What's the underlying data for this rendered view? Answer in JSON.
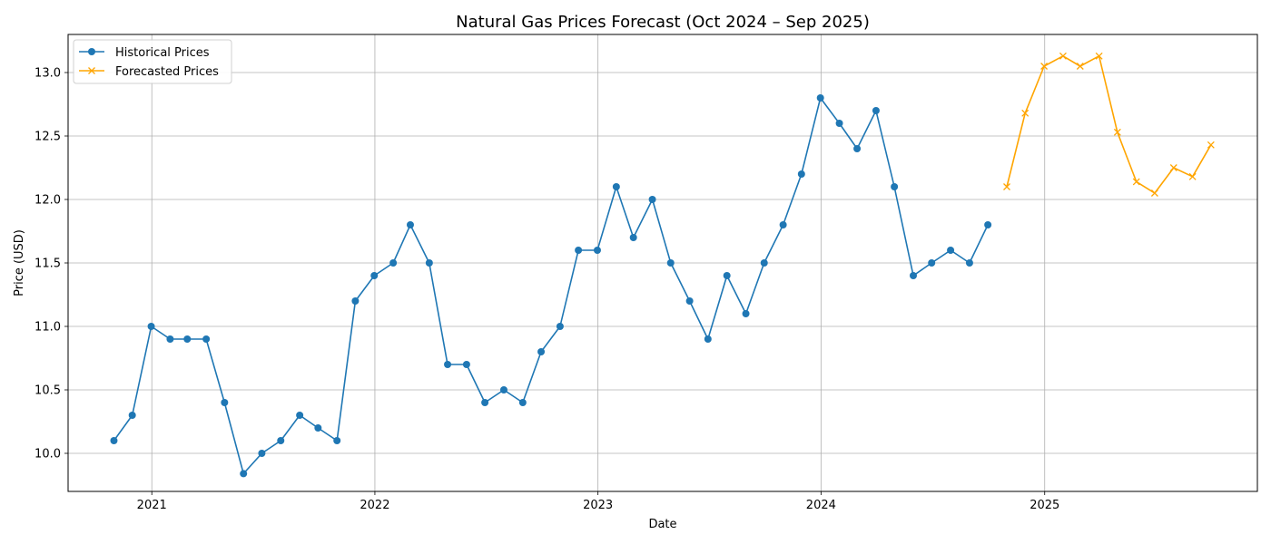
{
  "chart_data": {
    "type": "line",
    "title": "Natural Gas Prices Forecast (Oct 2024 – Sep 2025)",
    "xlabel": "Date",
    "ylabel": "Price (USD)",
    "xlim": [
      "2020-08-17",
      "2025-12-15"
    ],
    "ylim": [
      9.7,
      13.3
    ],
    "x_ticks": [
      {
        "date": "2021-01-01",
        "label": "2021"
      },
      {
        "date": "2022-01-01",
        "label": "2022"
      },
      {
        "date": "2023-01-01",
        "label": "2023"
      },
      {
        "date": "2024-01-01",
        "label": "2024"
      },
      {
        "date": "2025-01-01",
        "label": "2025"
      }
    ],
    "y_ticks": [
      10.0,
      10.5,
      11.0,
      11.5,
      12.0,
      12.5,
      13.0
    ],
    "grid": true,
    "legend_position": "top-left",
    "series": [
      {
        "name": "Historical Prices",
        "color": "#1f77b4",
        "marker": "circle",
        "points": [
          [
            "2020-10-31",
            10.1
          ],
          [
            "2020-11-30",
            10.3
          ],
          [
            "2020-12-31",
            11.0
          ],
          [
            "2021-01-31",
            10.9
          ],
          [
            "2021-02-28",
            10.9
          ],
          [
            "2021-03-31",
            10.9
          ],
          [
            "2021-04-30",
            10.4
          ],
          [
            "2021-05-31",
            9.84
          ],
          [
            "2021-06-30",
            10.0
          ],
          [
            "2021-07-31",
            10.1
          ],
          [
            "2021-08-31",
            10.3
          ],
          [
            "2021-09-30",
            10.2
          ],
          [
            "2021-10-31",
            10.1
          ],
          [
            "2021-11-30",
            11.2
          ],
          [
            "2021-12-31",
            11.4
          ],
          [
            "2022-01-31",
            11.5
          ],
          [
            "2022-02-28",
            11.8
          ],
          [
            "2022-03-31",
            11.5
          ],
          [
            "2022-04-30",
            10.7
          ],
          [
            "2022-05-31",
            10.7
          ],
          [
            "2022-06-30",
            10.4
          ],
          [
            "2022-07-31",
            10.5
          ],
          [
            "2022-08-31",
            10.4
          ],
          [
            "2022-09-30",
            10.8
          ],
          [
            "2022-10-31",
            11.0
          ],
          [
            "2022-11-30",
            11.6
          ],
          [
            "2022-12-31",
            11.6
          ],
          [
            "2023-01-31",
            12.1
          ],
          [
            "2023-02-28",
            11.7
          ],
          [
            "2023-03-31",
            12.0
          ],
          [
            "2023-04-30",
            11.5
          ],
          [
            "2023-05-31",
            11.2
          ],
          [
            "2023-06-30",
            10.9
          ],
          [
            "2023-07-31",
            11.4
          ],
          [
            "2023-08-31",
            11.1
          ],
          [
            "2023-09-30",
            11.5
          ],
          [
            "2023-10-31",
            11.8
          ],
          [
            "2023-11-30",
            12.2
          ],
          [
            "2023-12-31",
            12.8
          ],
          [
            "2024-01-31",
            12.6
          ],
          [
            "2024-02-29",
            12.4
          ],
          [
            "2024-03-31",
            12.7
          ],
          [
            "2024-04-30",
            12.1
          ],
          [
            "2024-05-31",
            11.4
          ],
          [
            "2024-06-30",
            11.5
          ],
          [
            "2024-07-31",
            11.6
          ],
          [
            "2024-08-31",
            11.5
          ],
          [
            "2024-09-30",
            11.8
          ]
        ]
      },
      {
        "name": "Forecasted Prices",
        "color": "#ffa500",
        "marker": "x",
        "points": [
          [
            "2024-10-31",
            12.1
          ],
          [
            "2024-11-30",
            12.68
          ],
          [
            "2024-12-31",
            13.05
          ],
          [
            "2025-01-31",
            13.13
          ],
          [
            "2025-02-28",
            13.05
          ],
          [
            "2025-03-31",
            13.13
          ],
          [
            "2025-04-30",
            12.53
          ],
          [
            "2025-05-31",
            12.14
          ],
          [
            "2025-06-30",
            12.05
          ],
          [
            "2025-07-31",
            12.25
          ],
          [
            "2025-08-31",
            12.18
          ],
          [
            "2025-09-30",
            12.43
          ]
        ]
      }
    ]
  }
}
